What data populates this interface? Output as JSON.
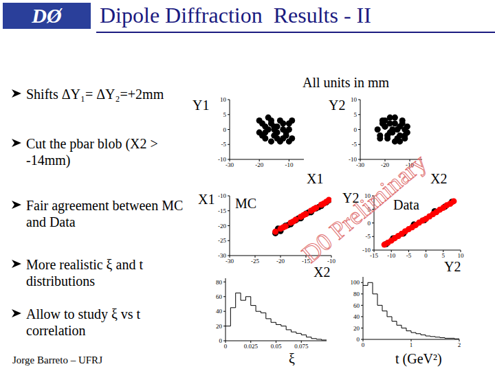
{
  "title": "Dipole Diffraction  Results - II",
  "logo": "DØ",
  "note": "All units in mm",
  "bullets": [
    "Shifts ΔY₁= ΔY₂=+2mm",
    "Cut the pbar blob (X2 > -14mm)",
    "Fair agreement between MC and Data",
    "More realistic ξ and t distributions",
    "Allow to study ξ vs t correlation"
  ],
  "footer": "Jorge Barreto – UFRJ",
  "watermark": "D0 Preliminary",
  "chart_data": [
    {
      "type": "scatter",
      "y_label": "Y1",
      "x_label": "X1",
      "xlim": [
        -30,
        -5
      ],
      "xticks": [
        -30,
        -20,
        -10
      ],
      "ylim": [
        -10,
        10
      ],
      "yticks": [
        -10,
        -5,
        0,
        5,
        10
      ],
      "series": [
        {
          "color": "#000000",
          "x": [
            -20,
            -19,
            -18,
            -17,
            -16,
            -15,
            -14,
            -13,
            -12,
            -11,
            -10,
            -9,
            -20,
            -18,
            -16,
            -14,
            -12,
            -10,
            -19,
            -17,
            -15,
            -13,
            -11,
            -9,
            -18,
            -16,
            -14,
            -12,
            -10,
            -15
          ],
          "values": [
            -1,
            2,
            -3,
            0,
            3,
            -2,
            1,
            -4,
            2,
            -1,
            0,
            3,
            3,
            1,
            -4,
            -1,
            -3,
            2,
            -2,
            4,
            0,
            3,
            -2,
            -3,
            -1,
            2,
            -3,
            0,
            -4,
            1
          ]
        }
      ]
    },
    {
      "type": "scatter",
      "y_label": "Y2",
      "x_label": "X2",
      "xlim": [
        -30,
        -5
      ],
      "xticks": [
        -30,
        -20,
        -10
      ],
      "ylim": [
        -10,
        10
      ],
      "yticks": [
        -10,
        -5,
        0,
        5,
        10
      ],
      "series": [
        {
          "color": "#000000",
          "x": [
            -23,
            -22,
            -21,
            -20,
            -19,
            -18,
            -17,
            -16,
            -15,
            -14,
            -13,
            -12,
            -11,
            -22,
            -20,
            -18,
            -16,
            -14,
            -12,
            -21,
            -19,
            -17,
            -15,
            -13,
            -11,
            -20,
            -16,
            -12,
            -18,
            -14
          ],
          "values": [
            0,
            -2,
            3,
            1,
            -3,
            2,
            -1,
            4,
            0,
            -4,
            2,
            -2,
            1,
            -3,
            3,
            -1,
            2,
            1,
            -3,
            2,
            -2,
            0,
            -3,
            3,
            -1,
            1,
            -4,
            0,
            4,
            -2
          ]
        }
      ]
    },
    {
      "type": "scatter",
      "y_label": "X1",
      "x_label": "X2",
      "annotation": "MC",
      "xlim": [
        -30,
        -10
      ],
      "xticks": [
        -30,
        -25,
        -20,
        -15,
        -10
      ],
      "ylim": [
        -30,
        -10
      ],
      "yticks": [
        -30,
        -25,
        -20,
        -15,
        -10
      ],
      "series": [
        {
          "color": "#000000",
          "x": [
            -21,
            -20,
            -19,
            -18,
            -17,
            -16,
            -15,
            -14,
            -13,
            -12,
            -11,
            -20.5,
            -18.5,
            -16.5,
            -14.5,
            -12.5,
            -10.5
          ],
          "values": [
            -22.5,
            -21.8,
            -20,
            -19.5,
            -18.2,
            -17.5,
            -16,
            -15.5,
            -14.2,
            -13.4,
            -12.2,
            -21,
            -19.8,
            -17.6,
            -15.6,
            -13.8,
            -11.5
          ]
        },
        {
          "color": "#ff0000",
          "x": [
            -21,
            -20,
            -19,
            -18,
            -17,
            -16,
            -15,
            -14,
            -13,
            -12,
            -11,
            -10.5,
            -19.5,
            -17.5,
            -15.5,
            -13.5,
            -11.5
          ],
          "values": [
            -22,
            -21,
            -20.2,
            -19,
            -18,
            -17,
            -16.1,
            -15,
            -14,
            -13,
            -12,
            -11.4,
            -20.6,
            -18.6,
            -16.5,
            -14.5,
            -12.6
          ]
        }
      ]
    },
    {
      "type": "scatter",
      "y_label": "Y2",
      "x_label": "Y2",
      "annotation": "Data",
      "xlim": [
        -15,
        10
      ],
      "xticks": [
        -15,
        -10,
        -5,
        0,
        5,
        10
      ],
      "ylim": [
        -10,
        10
      ],
      "yticks": [
        -10,
        -5,
        0,
        5,
        10
      ],
      "series": [
        {
          "color": "#000000",
          "x": [
            -11.5,
            -9.5,
            -6.5,
            -3.5,
            -0.5,
            2.5,
            5.5,
            7.5
          ],
          "values": [
            -7.8,
            -5.7,
            -3.9,
            -0.6,
            1.0,
            4.3,
            6.0,
            7.8
          ]
        },
        {
          "color": "#ff0000",
          "x": [
            -12,
            -11,
            -10,
            -9,
            -8,
            -7,
            -6,
            -5,
            -4,
            -3,
            -2,
            -1,
            0,
            1,
            2,
            3,
            4,
            5,
            6,
            7,
            8
          ],
          "values": [
            -8,
            -7.3,
            -6.5,
            -5.6,
            -4.8,
            -4,
            -3.1,
            -2.3,
            -1.6,
            -0.8,
            0.1,
            0.9,
            1.5,
            2.4,
            3.2,
            4,
            4.9,
            5.6,
            6.5,
            7.1,
            8
          ]
        }
      ]
    },
    {
      "type": "histogram",
      "x_label": "ξ",
      "color": "#000000",
      "xlim": [
        0,
        0.1
      ],
      "xticks": [
        0,
        0.025,
        0.05,
        0.075
      ],
      "ylim": [
        0,
        85
      ],
      "yticks": [
        0,
        20,
        40,
        60,
        80
      ],
      "bins": [
        0,
        0.005,
        0.01,
        0.015,
        0.02,
        0.025,
        0.03,
        0.035,
        0.04,
        0.045,
        0.05,
        0.055,
        0.06,
        0.065,
        0.07,
        0.075,
        0.08,
        0.085,
        0.09,
        0.095,
        0.1
      ],
      "values": [
        20,
        45,
        65,
        55,
        60,
        48,
        40,
        38,
        30,
        25,
        22,
        20,
        15,
        12,
        10,
        8,
        5,
        3,
        2,
        1
      ]
    },
    {
      "type": "histogram",
      "x_label": "t (GeV²)",
      "color": "#000000",
      "xlim": [
        0,
        2
      ],
      "xticks": [
        0,
        1,
        2
      ],
      "ylim": [
        0,
        110
      ],
      "yticks": [
        0,
        20,
        40,
        60,
        80,
        100
      ],
      "bins": [
        0,
        0.1,
        0.2,
        0.3,
        0.4,
        0.5,
        0.6,
        0.7,
        0.8,
        0.9,
        1,
        1.1,
        1.2,
        1.3,
        1.4,
        1.5,
        1.6,
        1.7,
        1.8,
        1.9,
        2
      ],
      "values": [
        95,
        100,
        80,
        60,
        50,
        40,
        32,
        25,
        20,
        15,
        12,
        10,
        8,
        6,
        5,
        4,
        3,
        2,
        2,
        1
      ]
    }
  ]
}
